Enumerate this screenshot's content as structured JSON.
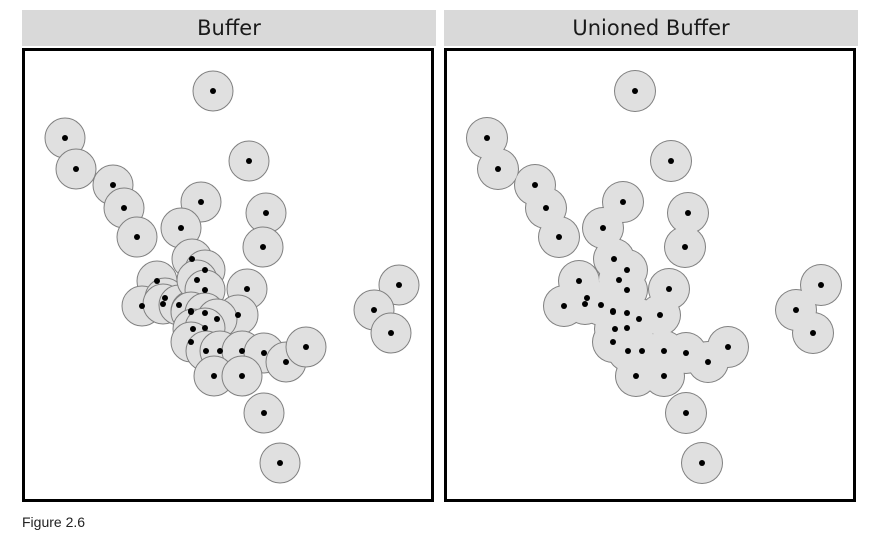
{
  "panels": [
    {
      "title": "Buffer",
      "union": false
    },
    {
      "title": "Unioned Buffer",
      "union": true
    }
  ],
  "caption": "Figure 2.6",
  "colors": {
    "buffer_fill": "#e0e0e0",
    "buffer_stroke": "#808080",
    "point": "#000000",
    "header_bg": "#d9d9d9",
    "frame": "#000000"
  }
}
